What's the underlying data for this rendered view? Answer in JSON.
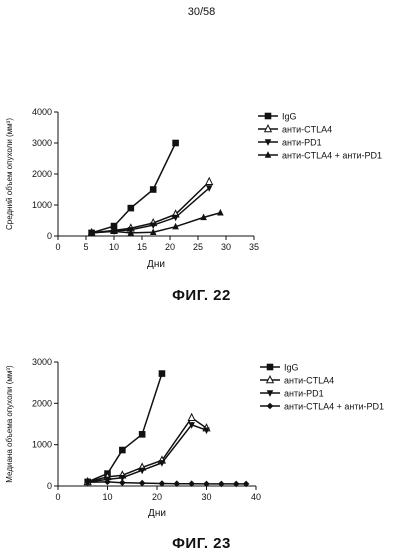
{
  "page_number": "30/58",
  "chart_data": [
    {
      "type": "line",
      "title": "",
      "caption": "ФИГ. 22",
      "xlabel": "Дни",
      "ylabel": "Средний объем опухоли (мм³)",
      "xlim": [
        0,
        35
      ],
      "ylim": [
        0,
        4000
      ],
      "xticks": [
        0,
        5,
        10,
        15,
        20,
        25,
        30,
        35
      ],
      "yticks": [
        0,
        1000,
        2000,
        3000,
        4000
      ],
      "grid": false,
      "legend_position": "top-right",
      "series": [
        {
          "name": "IgG",
          "marker": "square",
          "x": [
            6,
            10,
            13,
            17,
            21
          ],
          "y": [
            100,
            320,
            900,
            1500,
            3000
          ]
        },
        {
          "name": "анти-CTLA4",
          "marker": "triangle-up",
          "x": [
            6,
            10,
            13,
            17,
            21,
            27
          ],
          "y": [
            100,
            180,
            250,
            420,
            700,
            1750
          ]
        },
        {
          "name": "анти-PD1",
          "marker": "triangle-down",
          "x": [
            6,
            10,
            13,
            17,
            21,
            27
          ],
          "y": [
            100,
            160,
            200,
            350,
            600,
            1550
          ]
        },
        {
          "name": "анти-CTLA4 + анти-PD1",
          "marker": "triangle-up-filled",
          "x": [
            6,
            10,
            13,
            17,
            21,
            26,
            29
          ],
          "y": [
            100,
            150,
            100,
            120,
            300,
            600,
            750
          ]
        }
      ]
    },
    {
      "type": "line",
      "title": "",
      "caption": "ФИГ. 23",
      "xlabel": "Дни",
      "ylabel": "Медиана объема опухоли (мм³)",
      "xlim": [
        0,
        40
      ],
      "ylim": [
        0,
        3000
      ],
      "xticks": [
        0,
        10,
        20,
        30,
        40
      ],
      "yticks": [
        0,
        1000,
        2000,
        3000
      ],
      "grid": false,
      "legend_position": "top-right",
      "series": [
        {
          "name": "IgG",
          "marker": "square",
          "x": [
            6,
            10,
            13,
            17,
            21
          ],
          "y": [
            100,
            300,
            870,
            1250,
            2720
          ]
        },
        {
          "name": "анти-CTLA4",
          "marker": "triangle-up",
          "x": [
            6,
            10,
            13,
            17,
            21,
            27,
            30
          ],
          "y": [
            100,
            220,
            260,
            450,
            620,
            1650,
            1400
          ]
        },
        {
          "name": "анти-PD1",
          "marker": "triangle-down",
          "x": [
            6,
            10,
            13,
            17,
            21,
            27,
            30
          ],
          "y": [
            100,
            160,
            200,
            380,
            560,
            1480,
            1350
          ]
        },
        {
          "name": "анти-CTLA4 + анти-PD1",
          "marker": "diamond",
          "x": [
            6,
            10,
            13,
            17,
            21,
            24,
            27,
            30,
            33,
            36,
            38
          ],
          "y": [
            90,
            100,
            80,
            70,
            60,
            55,
            55,
            50,
            50,
            50,
            50
          ]
        }
      ]
    }
  ]
}
